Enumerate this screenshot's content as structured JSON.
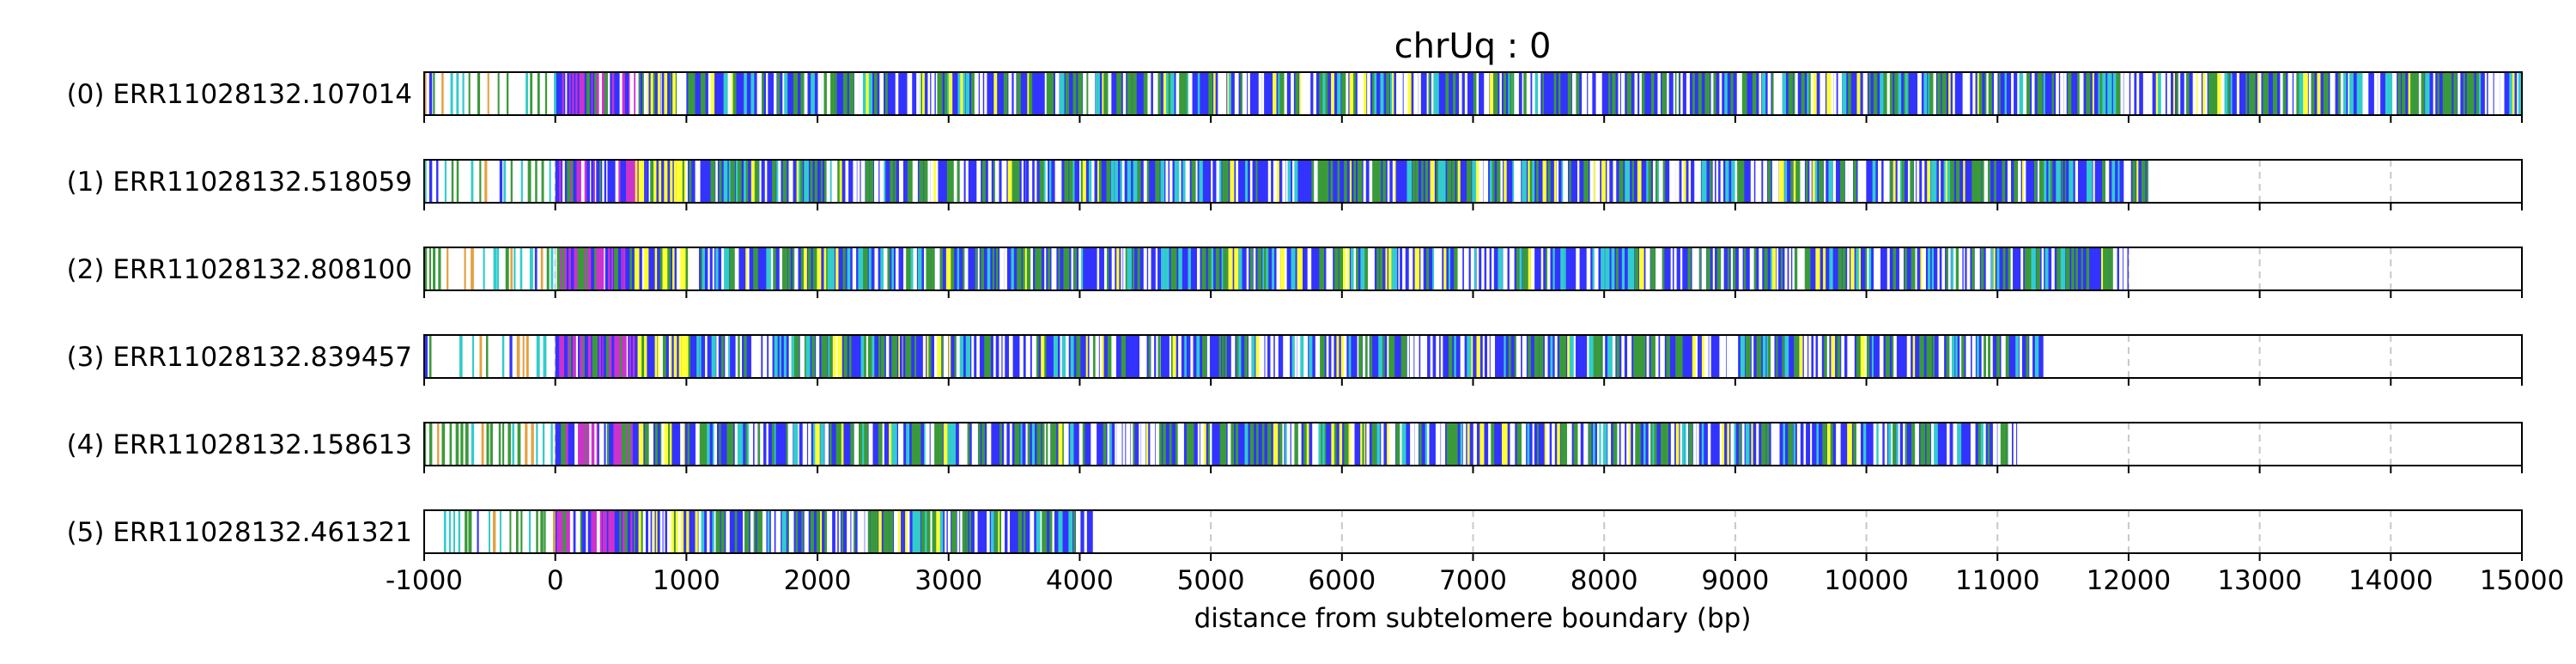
{
  "chart_data": {
    "type": "track",
    "title": "chrUq : 0",
    "xlabel": "distance from subtelomere boundary (bp)",
    "xlim": [
      -1000,
      15000
    ],
    "xticks": [
      -1000,
      0,
      1000,
      2000,
      3000,
      4000,
      5000,
      6000,
      7000,
      8000,
      9000,
      10000,
      11000,
      12000,
      13000,
      14000,
      15000
    ],
    "xtick_labels": [
      "-1000",
      "0",
      "1000",
      "2000",
      "3000",
      "4000",
      "5000",
      "6000",
      "7000",
      "8000",
      "9000",
      "10000",
      "11000",
      "12000",
      "13000",
      "14000",
      "15000"
    ],
    "grid": "vertical dashed at x ticks",
    "boundary_x": 0,
    "colors": {
      "main": "#3333ff",
      "green": "#3a9a3a",
      "yellow": "#ffff33",
      "magenta": "#cc33cc",
      "cyan": "#33cccc",
      "orange": "#e6a040",
      "gap": "#ffffff",
      "grid": "#c8c8c8",
      "frame": "#000000"
    },
    "reads": [
      {
        "label": "(0) ERR11028132.107014",
        "start": -1000,
        "end": 15000,
        "seed": 11
      },
      {
        "label": "(1) ERR11028132.518059",
        "start": -1000,
        "end": 12150,
        "seed": 23
      },
      {
        "label": "(2) ERR11028132.808100",
        "start": -1000,
        "end": 12000,
        "seed": 37
      },
      {
        "label": "(3) ERR11028132.839457",
        "start": -1000,
        "end": 11350,
        "seed": 41
      },
      {
        "label": "(4) ERR11028132.158613",
        "start": -1000,
        "end": 11150,
        "seed": 53
      },
      {
        "label": "(5) ERR11028132.461321",
        "start": -850,
        "end": 4100,
        "seed": 67
      }
    ]
  }
}
